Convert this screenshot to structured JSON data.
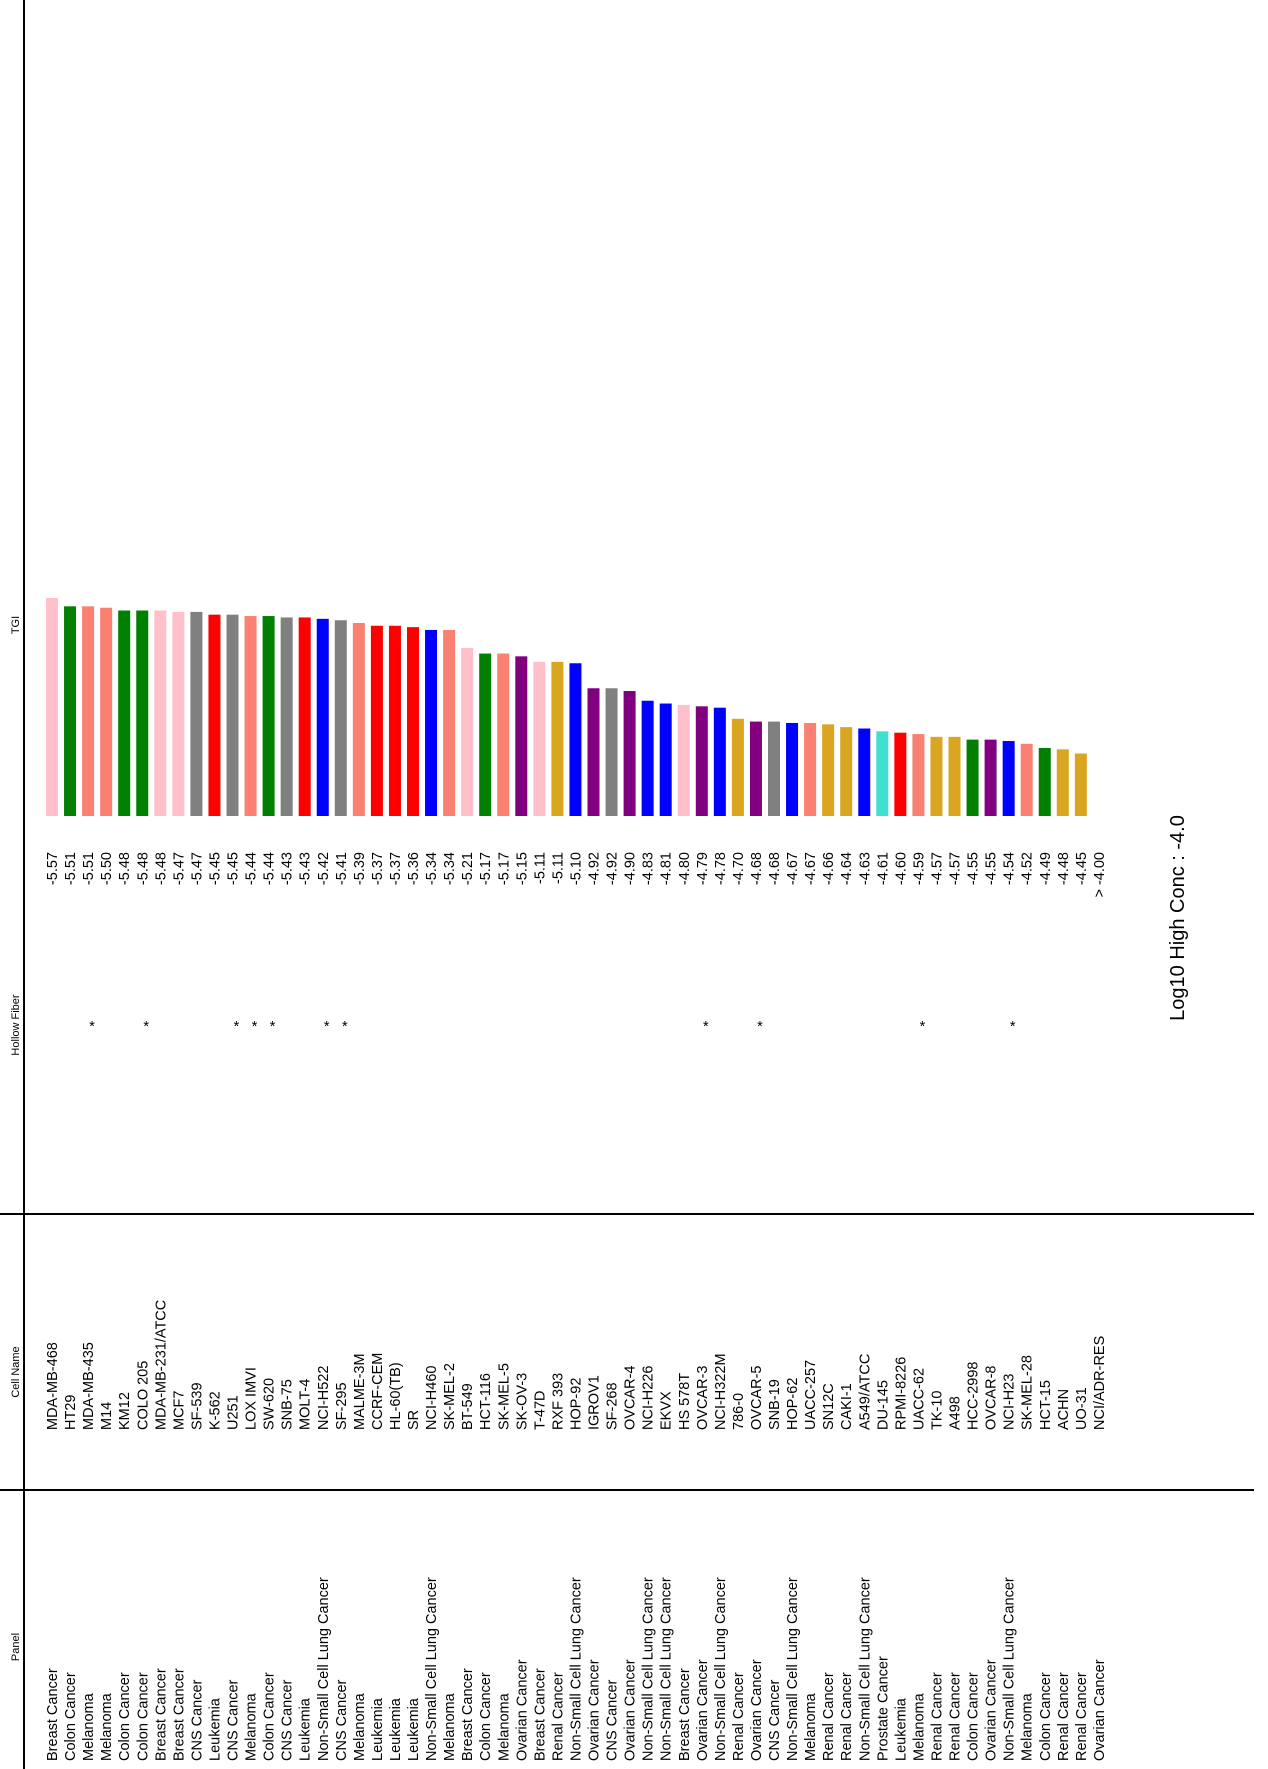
{
  "chart_data": {
    "type": "bar",
    "headers": {
      "panel": "Panel",
      "cell_name": "Cell Name",
      "hollow_fiber": "Hollow Fiber",
      "tgi": "TGI"
    },
    "annotation": "Log10 High Conc : -4.0",
    "bar_floor": -4.0,
    "value_range": [
      -4.0,
      -5.57
    ],
    "panel_colors": {
      "Breast Cancer": "#ffc0cb",
      "Colon Cancer": "#008000",
      "Melanoma": "#fa8072",
      "CNS Cancer": "#808080",
      "Leukemia": "#ff0000",
      "Non-Small Cell Lung Cancer": "#0000ff",
      "Ovarian Cancer": "#800080",
      "Renal Cancer": "#daa520",
      "Prostate Cancer": "#40e0d0"
    },
    "rows": [
      {
        "panel": "Breast Cancer",
        "cell": "MDA-MB-468",
        "hf": "",
        "tgi": -5.57,
        "label": "-5.57"
      },
      {
        "panel": "Colon Cancer",
        "cell": "HT29",
        "hf": "",
        "tgi": -5.51,
        "label": "-5.51"
      },
      {
        "panel": "Melanoma",
        "cell": "MDA-MB-435",
        "hf": "*",
        "tgi": -5.51,
        "label": "-5.51"
      },
      {
        "panel": "Melanoma",
        "cell": "M14",
        "hf": "",
        "tgi": -5.5,
        "label": "-5.50"
      },
      {
        "panel": "Colon Cancer",
        "cell": "KM12",
        "hf": "",
        "tgi": -5.48,
        "label": "-5.48"
      },
      {
        "panel": "Colon Cancer",
        "cell": "COLO 205",
        "hf": "*",
        "tgi": -5.48,
        "label": "-5.48"
      },
      {
        "panel": "Breast Cancer",
        "cell": "MDA-MB-231/ATCC",
        "hf": "",
        "tgi": -5.48,
        "label": "-5.48"
      },
      {
        "panel": "Breast Cancer",
        "cell": "MCF7",
        "hf": "",
        "tgi": -5.47,
        "label": "-5.47"
      },
      {
        "panel": "CNS Cancer",
        "cell": "SF-539",
        "hf": "",
        "tgi": -5.47,
        "label": "-5.47"
      },
      {
        "panel": "Leukemia",
        "cell": "K-562",
        "hf": "",
        "tgi": -5.45,
        "label": "-5.45"
      },
      {
        "panel": "CNS Cancer",
        "cell": "U251",
        "hf": "*",
        "tgi": -5.45,
        "label": "-5.45"
      },
      {
        "panel": "Melanoma",
        "cell": "LOX IMVI",
        "hf": "*",
        "tgi": -5.44,
        "label": "-5.44"
      },
      {
        "panel": "Colon Cancer",
        "cell": "SW-620",
        "hf": "*",
        "tgi": -5.44,
        "label": "-5.44"
      },
      {
        "panel": "CNS Cancer",
        "cell": "SNB-75",
        "hf": "",
        "tgi": -5.43,
        "label": "-5.43"
      },
      {
        "panel": "Leukemia",
        "cell": "MOLT-4",
        "hf": "",
        "tgi": -5.43,
        "label": "-5.43"
      },
      {
        "panel": "Non-Small Cell Lung Cancer",
        "cell": "NCI-H522",
        "hf": "*",
        "tgi": -5.42,
        "label": "-5.42"
      },
      {
        "panel": "CNS Cancer",
        "cell": "SF-295",
        "hf": "*",
        "tgi": -5.41,
        "label": "-5.41"
      },
      {
        "panel": "Melanoma",
        "cell": "MALME-3M",
        "hf": "",
        "tgi": -5.39,
        "label": "-5.39"
      },
      {
        "panel": "Leukemia",
        "cell": "CCRF-CEM",
        "hf": "",
        "tgi": -5.37,
        "label": "-5.37"
      },
      {
        "panel": "Leukemia",
        "cell": "HL-60(TB)",
        "hf": "",
        "tgi": -5.37,
        "label": "-5.37"
      },
      {
        "panel": "Leukemia",
        "cell": "SR",
        "hf": "",
        "tgi": -5.36,
        "label": "-5.36"
      },
      {
        "panel": "Non-Small Cell Lung Cancer",
        "cell": "NCI-H460",
        "hf": "",
        "tgi": -5.34,
        "label": "-5.34"
      },
      {
        "panel": "Melanoma",
        "cell": "SK-MEL-2",
        "hf": "",
        "tgi": -5.34,
        "label": "-5.34"
      },
      {
        "panel": "Breast Cancer",
        "cell": "BT-549",
        "hf": "",
        "tgi": -5.21,
        "label": "-5.21"
      },
      {
        "panel": "Colon Cancer",
        "cell": "HCT-116",
        "hf": "",
        "tgi": -5.17,
        "label": "-5.17"
      },
      {
        "panel": "Melanoma",
        "cell": "SK-MEL-5",
        "hf": "",
        "tgi": -5.17,
        "label": "-5.17"
      },
      {
        "panel": "Ovarian Cancer",
        "cell": "SK-OV-3",
        "hf": "",
        "tgi": -5.15,
        "label": "-5.15"
      },
      {
        "panel": "Breast Cancer",
        "cell": "T-47D",
        "hf": "",
        "tgi": -5.11,
        "label": "-5.11"
      },
      {
        "panel": "Renal Cancer",
        "cell": "RXF 393",
        "hf": "",
        "tgi": -5.11,
        "label": "-5.11"
      },
      {
        "panel": "Non-Small Cell Lung Cancer",
        "cell": "HOP-92",
        "hf": "",
        "tgi": -5.1,
        "label": "-5.10"
      },
      {
        "panel": "Ovarian Cancer",
        "cell": "IGROV1",
        "hf": "",
        "tgi": -4.92,
        "label": "-4.92"
      },
      {
        "panel": "CNS Cancer",
        "cell": "SF-268",
        "hf": "",
        "tgi": -4.92,
        "label": "-4.92"
      },
      {
        "panel": "Ovarian Cancer",
        "cell": "OVCAR-4",
        "hf": "",
        "tgi": -4.9,
        "label": "-4.90"
      },
      {
        "panel": "Non-Small Cell Lung Cancer",
        "cell": "NCI-H226",
        "hf": "",
        "tgi": -4.83,
        "label": "-4.83"
      },
      {
        "panel": "Non-Small Cell Lung Cancer",
        "cell": "EKVX",
        "hf": "",
        "tgi": -4.81,
        "label": "-4.81"
      },
      {
        "panel": "Breast Cancer",
        "cell": "HS 578T",
        "hf": "",
        "tgi": -4.8,
        "label": "-4.80"
      },
      {
        "panel": "Ovarian Cancer",
        "cell": "OVCAR-3",
        "hf": "*",
        "tgi": -4.79,
        "label": "-4.79"
      },
      {
        "panel": "Non-Small Cell Lung Cancer",
        "cell": "NCI-H322M",
        "hf": "",
        "tgi": -4.78,
        "label": "-4.78"
      },
      {
        "panel": "Renal Cancer",
        "cell": "786-0",
        "hf": "",
        "tgi": -4.7,
        "label": "-4.70"
      },
      {
        "panel": "Ovarian Cancer",
        "cell": "OVCAR-5",
        "hf": "*",
        "tgi": -4.68,
        "label": "-4.68"
      },
      {
        "panel": "CNS Cancer",
        "cell": "SNB-19",
        "hf": "",
        "tgi": -4.68,
        "label": "-4.68"
      },
      {
        "panel": "Non-Small Cell Lung Cancer",
        "cell": "HOP-62",
        "hf": "",
        "tgi": -4.67,
        "label": "-4.67"
      },
      {
        "panel": "Melanoma",
        "cell": "UACC-257",
        "hf": "",
        "tgi": -4.67,
        "label": "-4.67"
      },
      {
        "panel": "Renal Cancer",
        "cell": "SN12C",
        "hf": "",
        "tgi": -4.66,
        "label": "-4.66"
      },
      {
        "panel": "Renal Cancer",
        "cell": "CAKI-1",
        "hf": "",
        "tgi": -4.64,
        "label": "-4.64"
      },
      {
        "panel": "Non-Small Cell Lung Cancer",
        "cell": "A549/ATCC",
        "hf": "",
        "tgi": -4.63,
        "label": "-4.63"
      },
      {
        "panel": "Prostate Cancer",
        "cell": "DU-145",
        "hf": "",
        "tgi": -4.61,
        "label": "-4.61"
      },
      {
        "panel": "Leukemia",
        "cell": "RPMI-8226",
        "hf": "",
        "tgi": -4.6,
        "label": "-4.60"
      },
      {
        "panel": "Melanoma",
        "cell": "UACC-62",
        "hf": "*",
        "tgi": -4.59,
        "label": "-4.59"
      },
      {
        "panel": "Renal Cancer",
        "cell": "TK-10",
        "hf": "",
        "tgi": -4.57,
        "label": "-4.57"
      },
      {
        "panel": "Renal Cancer",
        "cell": "A498",
        "hf": "",
        "tgi": -4.57,
        "label": "-4.57"
      },
      {
        "panel": "Colon Cancer",
        "cell": "HCC-2998",
        "hf": "",
        "tgi": -4.55,
        "label": "-4.55"
      },
      {
        "panel": "Ovarian Cancer",
        "cell": "OVCAR-8",
        "hf": "",
        "tgi": -4.55,
        "label": "-4.55"
      },
      {
        "panel": "Non-Small Cell Lung Cancer",
        "cell": "NCI-H23",
        "hf": "*",
        "tgi": -4.54,
        "label": "-4.54"
      },
      {
        "panel": "Melanoma",
        "cell": "SK-MEL-28",
        "hf": "",
        "tgi": -4.52,
        "label": "-4.52"
      },
      {
        "panel": "Colon Cancer",
        "cell": "HCT-15",
        "hf": "",
        "tgi": -4.49,
        "label": "-4.49"
      },
      {
        "panel": "Renal Cancer",
        "cell": "ACHN",
        "hf": "",
        "tgi": -4.48,
        "label": "-4.48"
      },
      {
        "panel": "Renal Cancer",
        "cell": "UO-31",
        "hf": "",
        "tgi": -4.45,
        "label": "-4.45"
      },
      {
        "panel": "Ovarian Cancer",
        "cell": "NCI/ADR-RES",
        "hf": "",
        "tgi": -4.0,
        "label": "> -4.00"
      }
    ]
  }
}
